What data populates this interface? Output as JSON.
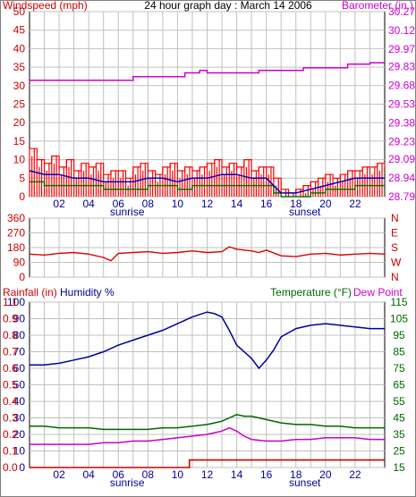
{
  "colors": {
    "wind": "#ff0000",
    "gust": "#ff0000",
    "avg_wind": "#0000cc",
    "green": "#007700",
    "barometer": "#cc00cc",
    "humidity": "#000099",
    "temperature": "#006600",
    "dewpoint": "#cc00cc",
    "rainfall": "#cc0000",
    "direction": "#dd0000",
    "grid": "#c0c0c0",
    "frame": "#000000"
  },
  "chart_data": [
    {
      "type": "line",
      "panel": "wind",
      "title": "24 hour graph day : March 14 2006",
      "left_axis_label": "Windspeed (mph)",
      "right_axis_label": "Barometer (in.)",
      "left_ticks": [
        0,
        5,
        10,
        15,
        20,
        25,
        30,
        35,
        40,
        45,
        50
      ],
      "right_ticks": [
        "28.79",
        "28.94",
        "29.09",
        "29.23",
        "29.38",
        "29.53",
        "29.68",
        "29.83",
        "29.97",
        "30.12",
        "30.27"
      ],
      "x_ticks": [
        "02",
        "04",
        "06",
        "08",
        "10",
        "12",
        "14",
        "16",
        "18",
        "20",
        "22"
      ],
      "sun_labels": [
        {
          "text": "sunrise",
          "hour": 6.6
        },
        {
          "text": "sunset",
          "hour": 18.6
        }
      ],
      "xlim": [
        0,
        24
      ],
      "ylim": [
        0,
        50
      ],
      "y2lim": [
        28.79,
        30.27
      ],
      "grid": true,
      "series": [
        {
          "name": "Barometer (in.)",
          "axis": "right",
          "x": [
            0,
            4,
            6,
            7,
            9,
            10.5,
            11.5,
            12,
            15,
            15.5,
            18.5,
            21.5,
            23,
            24
          ],
          "values": [
            29.72,
            29.72,
            29.72,
            29.75,
            29.75,
            29.78,
            29.8,
            29.78,
            29.78,
            29.8,
            29.82,
            29.85,
            29.86,
            29.86
          ]
        },
        {
          "axis": "left",
          "x": [
            0,
            0.5,
            1,
            1.5,
            2,
            2.5,
            3,
            3.5,
            4,
            4.5,
            5,
            5.5,
            6,
            6.5,
            7,
            7.5,
            8,
            8.5,
            9,
            9.5,
            10,
            10.5,
            11,
            11.5,
            12,
            12.5,
            13,
            13.5,
            14,
            14.5,
            15,
            15.5,
            16,
            16.5,
            17,
            17.5,
            18,
            18.5,
            19,
            19.5,
            20,
            20.5,
            21,
            21.5,
            22,
            22.5,
            23,
            23.5,
            24
          ],
          "values": [
            13,
            10,
            9,
            11,
            8,
            10,
            7,
            9,
            8,
            9,
            6,
            7,
            7,
            5,
            8,
            9,
            7,
            6,
            8,
            9,
            7,
            8,
            7,
            8,
            9,
            10,
            8,
            9,
            8,
            10,
            7,
            8,
            8,
            5,
            2,
            1,
            2,
            3,
            4,
            5,
            6,
            5,
            6,
            7,
            7,
            8,
            8,
            9,
            8
          ]
        },
        {
          "axis": "left",
          "x": [
            0,
            1,
            2,
            3,
            4,
            5,
            6,
            7,
            8,
            9,
            10,
            11,
            12,
            13,
            14,
            15,
            16,
            16.5,
            17,
            18,
            19,
            20,
            21,
            22,
            23,
            24
          ],
          "values": [
            7,
            6,
            6,
            5,
            5,
            4,
            4,
            4,
            5,
            5,
            4,
            5,
            5,
            6,
            6,
            5,
            5,
            3,
            1,
            1,
            2,
            3,
            4,
            5,
            5,
            5
          ]
        },
        {
          "axis": "left",
          "x": [
            0,
            1,
            2,
            3,
            4,
            5,
            6,
            7,
            8,
            9,
            10,
            11,
            12,
            13,
            14,
            15,
            16,
            16.5,
            17,
            18,
            19,
            20,
            21,
            22,
            23,
            24
          ],
          "values": [
            4,
            3,
            3,
            3,
            3,
            2,
            2,
            2,
            3,
            3,
            2,
            3,
            3,
            3,
            3,
            3,
            3,
            1,
            0,
            0,
            1,
            2,
            2,
            3,
            3,
            3
          ]
        }
      ]
    },
    {
      "type": "scatter",
      "panel": "direction",
      "left_ticks": [
        0,
        90,
        180,
        270,
        360
      ],
      "right_labels": [
        "N",
        "W",
        "S",
        "E",
        "N"
      ],
      "x_ticks": [],
      "xlim": [
        0,
        24
      ],
      "ylim": [
        0,
        360
      ],
      "grid": true,
      "series": [
        {
          "x": [
            0,
            1,
            2,
            3,
            4,
            5,
            5.5,
            6,
            7,
            8,
            9,
            10,
            11,
            12,
            13,
            13.5,
            14,
            15,
            15.5,
            16,
            17,
            18,
            19,
            20,
            21,
            22,
            23,
            24
          ],
          "values": [
            140,
            135,
            145,
            150,
            140,
            120,
            100,
            145,
            150,
            155,
            145,
            150,
            160,
            150,
            155,
            185,
            170,
            160,
            150,
            165,
            130,
            125,
            140,
            145,
            135,
            140,
            145,
            140
          ]
        }
      ]
    },
    {
      "type": "line",
      "panel": "weather",
      "left_axis_label_1": "Rainfall (in)",
      "left_axis_label_2": "Humidity %",
      "right_axis_label_1": "Temperature (°F)",
      "right_axis_label_2": "Dew Point",
      "humidity_ticks": [
        0,
        10,
        20,
        30,
        40,
        50,
        60,
        70,
        80,
        90,
        100
      ],
      "rain_ticks": [
        "0.0",
        "0.1",
        "0.2",
        "0.3",
        "0.4",
        "0.5",
        "0.6",
        "0.7",
        "0.8",
        "0.9",
        "1.1"
      ],
      "temp_ticks": [
        15,
        25,
        35,
        45,
        55,
        65,
        75,
        85,
        95,
        105,
        115
      ],
      "x_ticks": [
        "02",
        "04",
        "06",
        "08",
        "10",
        "12",
        "14",
        "16",
        "18",
        "20",
        "22"
      ],
      "sun_labels": [
        {
          "text": "sunrise",
          "hour": 6.6
        },
        {
          "text": "sunset",
          "hour": 18.6
        }
      ],
      "xlim": [
        0,
        24
      ],
      "ylim": [
        0,
        100
      ],
      "y2lim": [
        15,
        115
      ],
      "grid": true,
      "series": [
        {
          "name": "Humidity %",
          "axis": "humidity",
          "x": [
            0,
            1,
            2,
            3,
            4,
            5,
            6,
            7,
            8,
            9,
            10,
            11,
            12,
            12.5,
            13,
            13.5,
            14,
            14.5,
            15,
            15.5,
            16,
            16.5,
            17,
            18,
            19,
            20,
            21,
            22,
            23,
            24
          ],
          "values": [
            62,
            62,
            63,
            65,
            67,
            70,
            74,
            77,
            80,
            83,
            87,
            91,
            94,
            93,
            91,
            83,
            74,
            70,
            66,
            60,
            65,
            71,
            79,
            84,
            86,
            87,
            86,
            85,
            84,
            84
          ]
        },
        {
          "name": "Temperature (°F)",
          "axis": "temp",
          "x": [
            0,
            1,
            2,
            3,
            4,
            5,
            6,
            7,
            8,
            9,
            10,
            11,
            12,
            12.5,
            13,
            13.5,
            14,
            14.5,
            15,
            16,
            17,
            18,
            19,
            20,
            21,
            22,
            23,
            24
          ],
          "values": [
            40,
            40,
            39,
            39,
            39,
            38,
            38,
            38,
            38,
            39,
            39,
            40,
            41,
            42,
            43,
            45,
            47,
            46,
            46,
            44,
            42,
            41,
            41,
            40,
            40,
            39,
            39,
            39
          ]
        },
        {
          "name": "Dew Point",
          "axis": "temp",
          "x": [
            0,
            1,
            2,
            3,
            4,
            5,
            6,
            7,
            8,
            9,
            10,
            11,
            12,
            12.5,
            13,
            13.5,
            14,
            14.5,
            15,
            16,
            17,
            18,
            19,
            20,
            21,
            22,
            23,
            24
          ],
          "values": [
            29,
            29,
            29,
            29,
            29,
            30,
            30,
            31,
            31,
            32,
            33,
            34,
            35,
            36,
            37,
            39,
            37,
            34,
            32,
            31,
            31,
            32,
            32,
            33,
            33,
            33,
            32,
            32
          ]
        },
        {
          "name": "Rainfall (in)",
          "axis": "rain",
          "x": [
            0,
            10.8,
            10.8,
            24
          ],
          "values": [
            0,
            0,
            0.05,
            0.05
          ]
        }
      ]
    }
  ]
}
